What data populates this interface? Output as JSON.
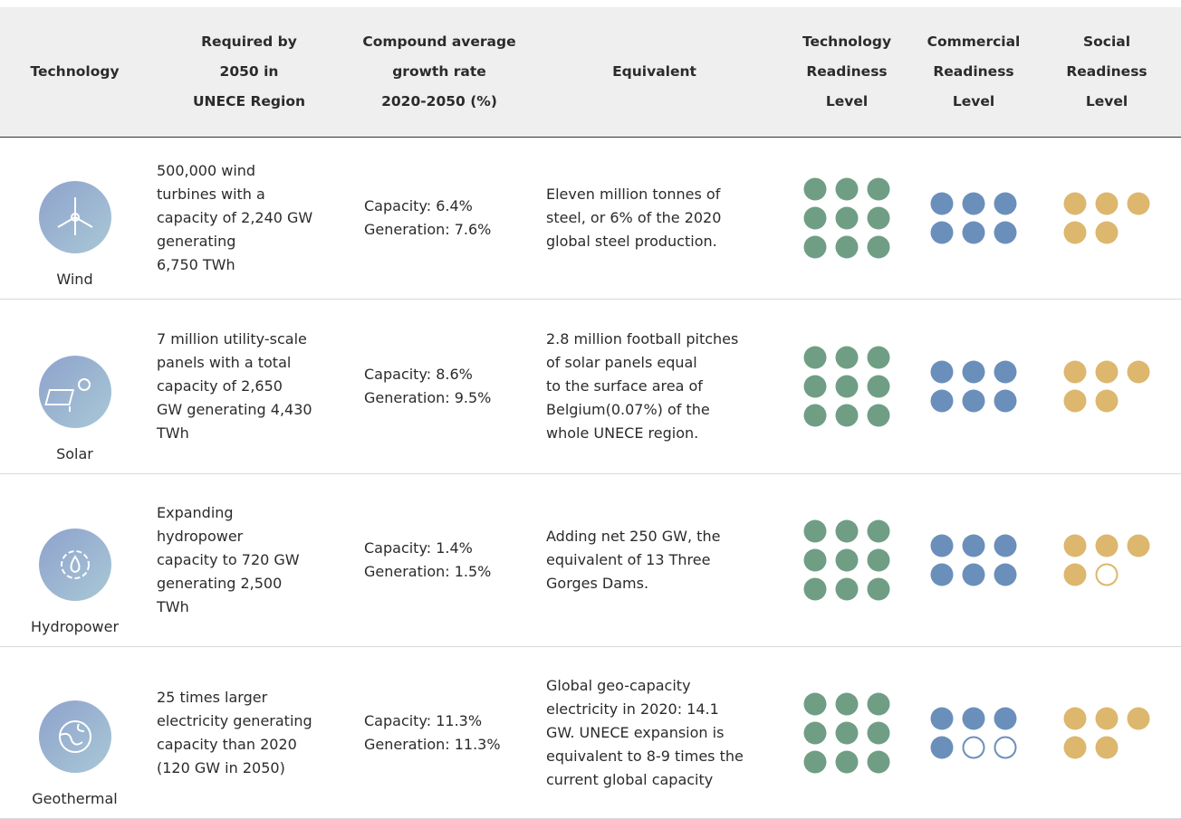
{
  "header": {
    "columns": [
      [
        "Technology"
      ],
      [
        "Required by",
        "2050 in",
        "UNECE Region"
      ],
      [
        "Compound average",
        "growth rate",
        "2020-2050 (%)"
      ],
      [
        "Equivalent"
      ],
      [
        "Technology",
        "Readiness",
        "Level"
      ],
      [
        "Commercial",
        "Readiness",
        "Level"
      ],
      [
        "Social",
        "Readiness",
        "Level"
      ]
    ]
  },
  "levels_max": {
    "trl": 9,
    "crl": 6,
    "srl": 5
  },
  "colors": {
    "trl": "#6f9e85",
    "crl": "#6b8fbb",
    "srl": "#dcb76d"
  },
  "rows": [
    {
      "technology": "Wind",
      "required": [
        "500,000 wind",
        "turbines with a",
        "capacity of 2,240 GW",
        "generating",
        "6,750 TWh"
      ],
      "capacity": "Capacity: 6.4%",
      "generation": "Generation: 7.6%",
      "equivalent": [
        "Eleven million tonnes of",
        "steel, or 6% of the 2020",
        "global steel production."
      ],
      "trl": 9,
      "crl": 6,
      "srl": 5
    },
    {
      "technology": "Solar",
      "required": [
        "7 million utility-scale",
        "panels with a total",
        "capacity of 2,650",
        "GW generating 4,430",
        "TWh"
      ],
      "capacity": "Capacity: 8.6%",
      "generation": "Generation: 9.5%",
      "equivalent": [
        "2.8 million football pitches",
        "of solar panels equal",
        "to the surface area of",
        "Belgium(0.07%) of the",
        "whole UNECE region."
      ],
      "trl": 9,
      "crl": 6,
      "srl": 5
    },
    {
      "technology": "Hydropower",
      "required": [
        "Expanding",
        "hydropower",
        "capacity to 720 GW",
        "generating 2,500",
        "TWh"
      ],
      "capacity": "Capacity: 1.4%",
      "generation": "Generation: 1.5%",
      "equivalent": [
        "Adding net 250 GW, the",
        "equivalent of 13 Three",
        "Gorges Dams."
      ],
      "trl": 9,
      "crl": 6,
      "srl": 4
    },
    {
      "technology": "Geothermal",
      "required": [
        "25 times larger",
        "electricity generating",
        "capacity than 2020",
        "(120 GW in 2050)"
      ],
      "capacity": "Capacity: 11.3%",
      "generation": "Generation: 11.3%",
      "equivalent": [
        "Global geo-capacity",
        "electricity in 2020: 14.1",
        "GW.  UNECE expansion is",
        "equivalent to 8-9 times the",
        "current global capacity"
      ],
      "trl": 9,
      "crl": 4,
      "srl": 5
    }
  ]
}
